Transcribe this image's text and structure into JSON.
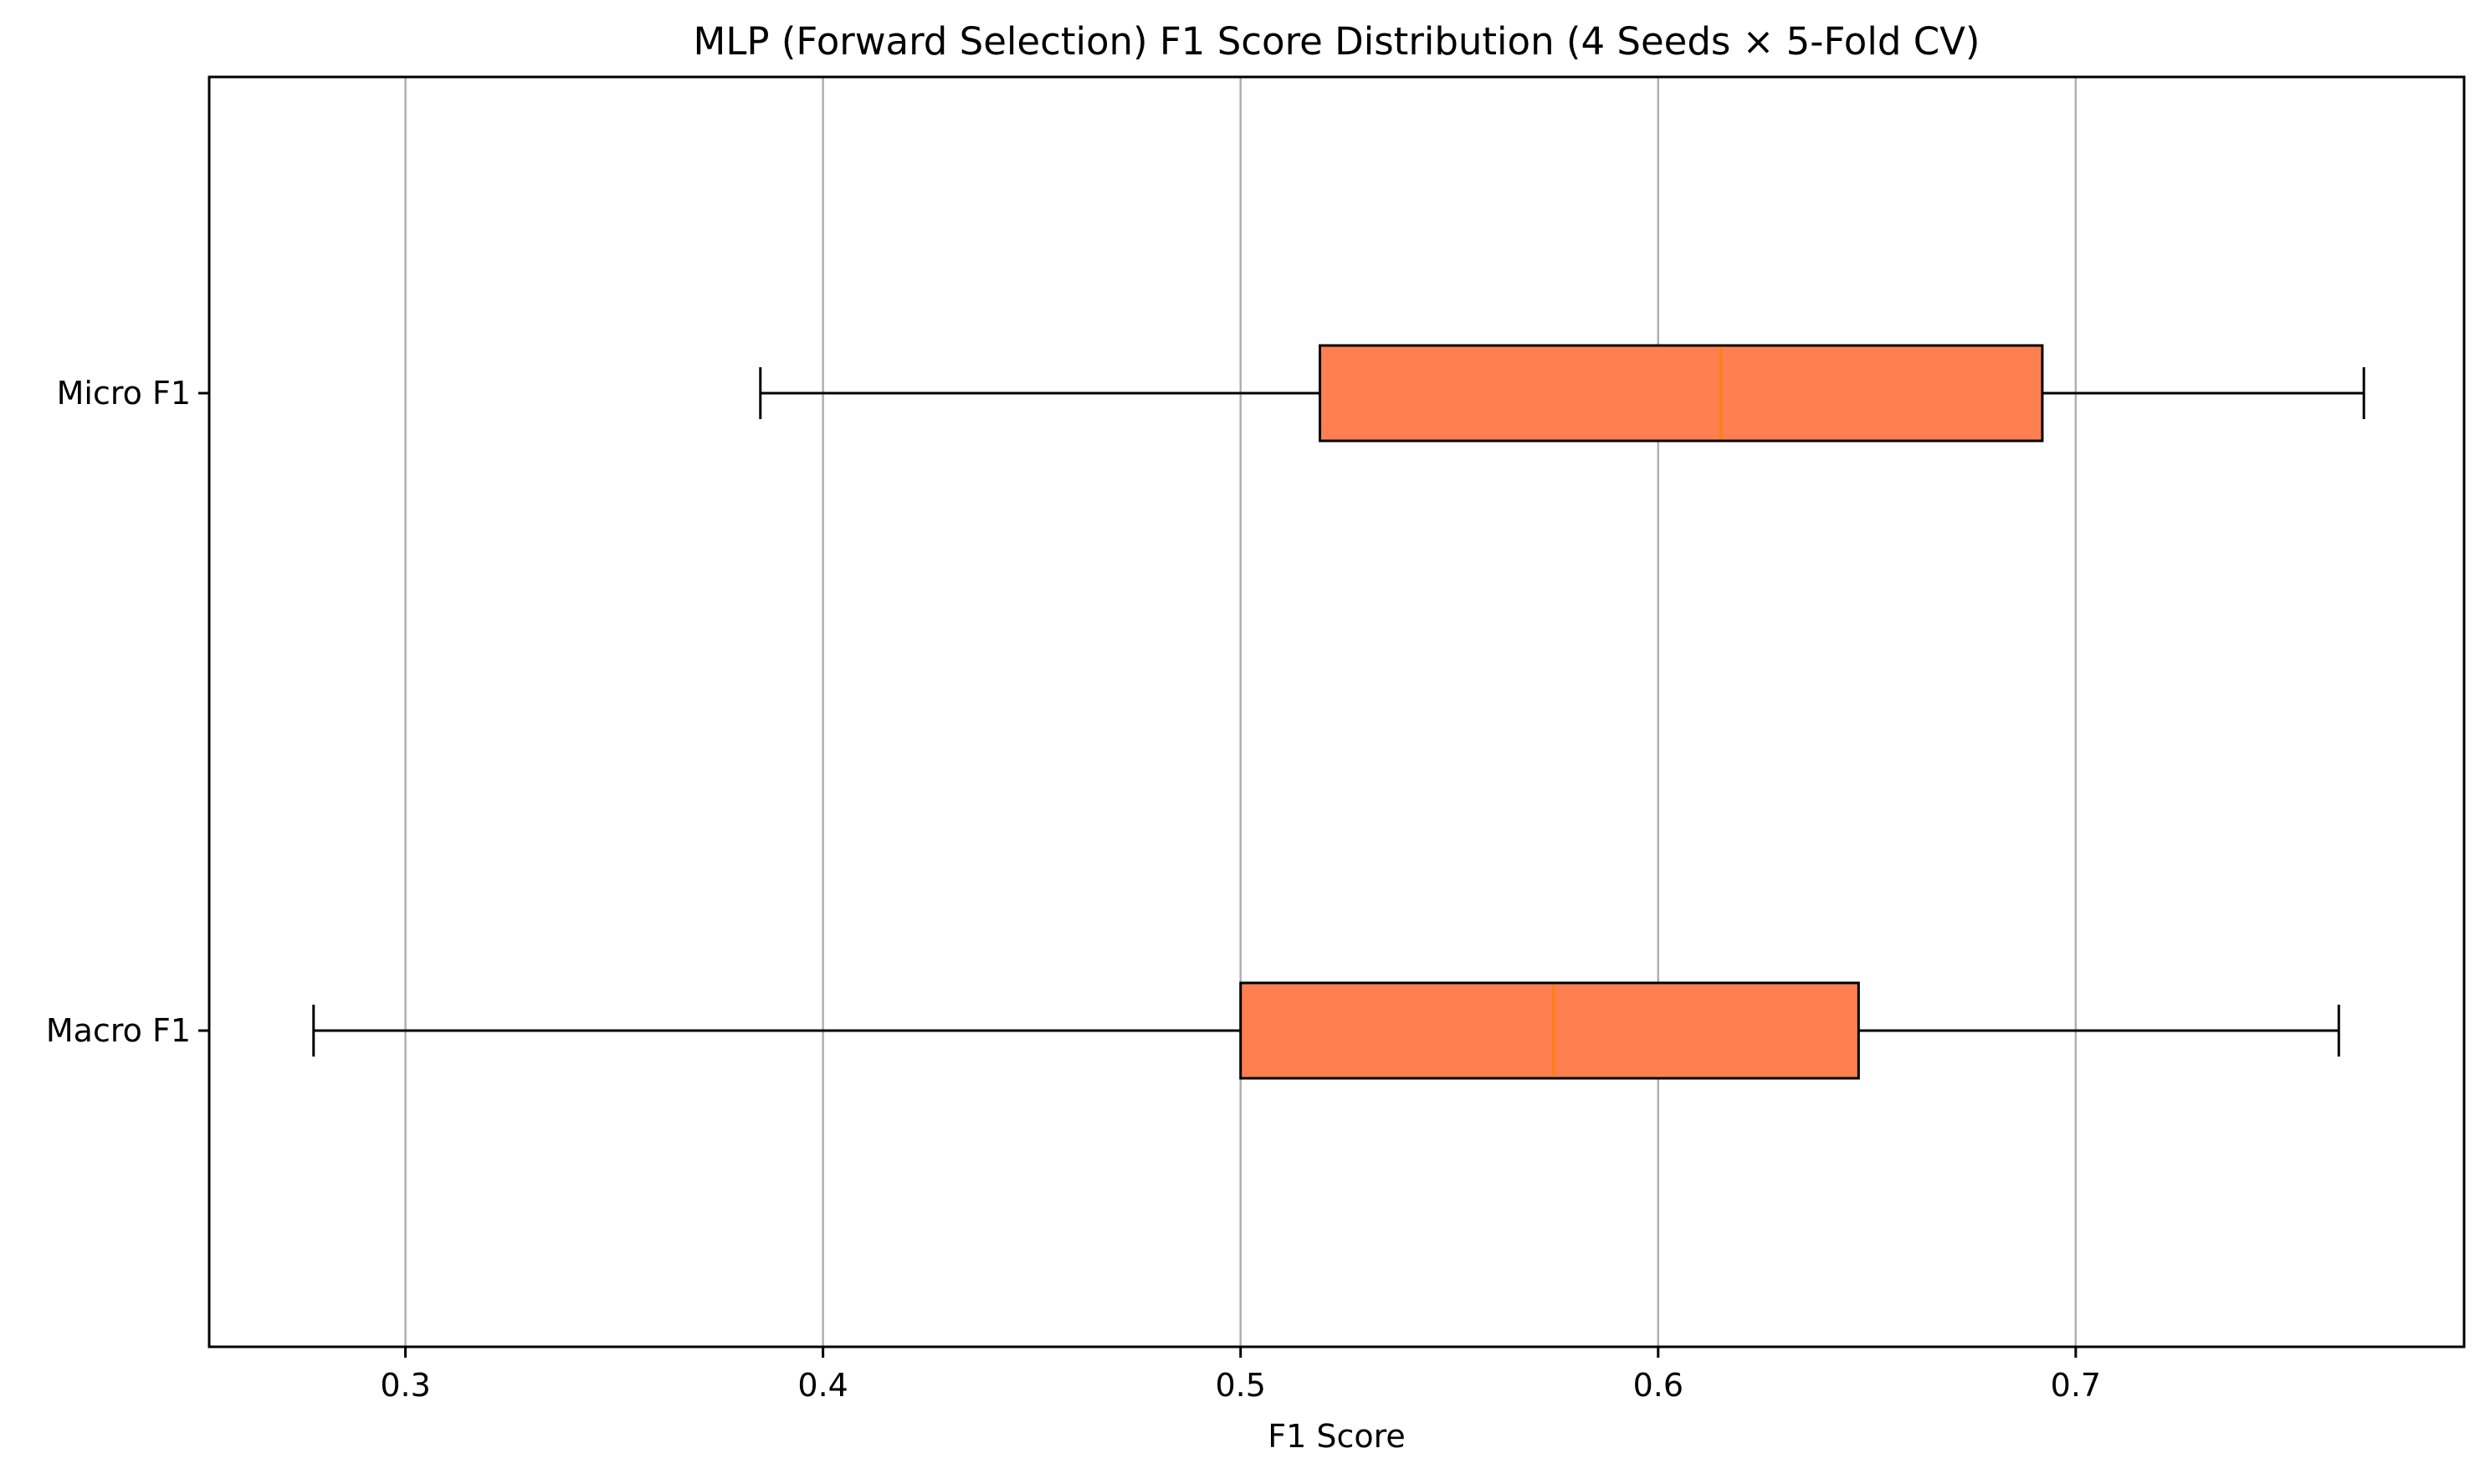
{
  "chart_data": {
    "type": "box",
    "orientation": "horizontal",
    "title": "MLP (Forward Selection) F1 Score Distribution (4 Seeds × 5-Fold CV)",
    "xlabel": "F1 Score",
    "ylabel": "",
    "xlim": [
      0.253,
      0.793
    ],
    "xticks": [
      0.3,
      0.4,
      0.5,
      0.6,
      0.7
    ],
    "xtick_labels": [
      "0.3",
      "0.4",
      "0.5",
      "0.6",
      "0.7"
    ],
    "grid": "vertical",
    "legend": "none",
    "colors": {
      "box_fill": "#ff7f50",
      "median": "#ff7f0e",
      "edge": "#000000",
      "grid": "#b0b0b0"
    },
    "series": [
      {
        "name": "Micro F1",
        "whisker_low": 0.385,
        "q1": 0.519,
        "median": 0.615,
        "q3": 0.692,
        "whisker_high": 0.769
      },
      {
        "name": "Macro F1",
        "whisker_low": 0.278,
        "q1": 0.5,
        "median": 0.575,
        "q3": 0.648,
        "whisker_high": 0.763
      }
    ]
  }
}
